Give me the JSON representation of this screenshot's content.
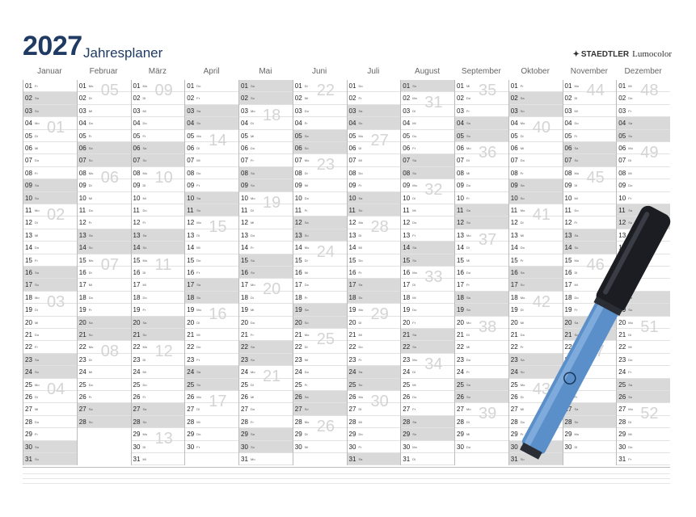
{
  "header": {
    "year": "2027",
    "title": "Jahresplaner",
    "brand": "STAEDTLER",
    "brand_product": "Lumocolor",
    "brand_mark": "✦"
  },
  "weekday_abbr": [
    "Mo",
    "Di",
    "Mi",
    "Do",
    "Fr",
    "Sa",
    "So"
  ],
  "months": [
    {
      "name": "Januar",
      "start_weekday": 4,
      "days": 31
    },
    {
      "name": "Februar",
      "start_weekday": 0,
      "days": 28
    },
    {
      "name": "März",
      "start_weekday": 0,
      "days": 31
    },
    {
      "name": "April",
      "start_weekday": 3,
      "days": 30
    },
    {
      "name": "Mai",
      "start_weekday": 5,
      "days": 31
    },
    {
      "name": "Juni",
      "start_weekday": 1,
      "days": 30
    },
    {
      "name": "Juli",
      "start_weekday": 3,
      "days": 31
    },
    {
      "name": "August",
      "start_weekday": 6,
      "days": 31
    },
    {
      "name": "September",
      "start_weekday": 2,
      "days": 30
    },
    {
      "name": "Oktober",
      "start_weekday": 4,
      "days": 31
    },
    {
      "name": "November",
      "start_weekday": 0,
      "days": 30
    },
    {
      "name": "Dezember",
      "start_weekday": 2,
      "days": 31
    }
  ],
  "week_numbers": [
    {
      "m": 0,
      "d": 4,
      "n": "01"
    },
    {
      "m": 0,
      "d": 11,
      "n": "02"
    },
    {
      "m": 0,
      "d": 18,
      "n": "03"
    },
    {
      "m": 0,
      "d": 25,
      "n": "04"
    },
    {
      "m": 1,
      "d": 1,
      "n": "05"
    },
    {
      "m": 1,
      "d": 8,
      "n": "06"
    },
    {
      "m": 1,
      "d": 15,
      "n": "07"
    },
    {
      "m": 1,
      "d": 22,
      "n": "08"
    },
    {
      "m": 2,
      "d": 1,
      "n": "09"
    },
    {
      "m": 2,
      "d": 8,
      "n": "10"
    },
    {
      "m": 2,
      "d": 15,
      "n": "11"
    },
    {
      "m": 2,
      "d": 22,
      "n": "12"
    },
    {
      "m": 2,
      "d": 29,
      "n": "13"
    },
    {
      "m": 3,
      "d": 5,
      "n": "14"
    },
    {
      "m": 3,
      "d": 12,
      "n": "15"
    },
    {
      "m": 3,
      "d": 19,
      "n": "16"
    },
    {
      "m": 3,
      "d": 26,
      "n": "17"
    },
    {
      "m": 4,
      "d": 3,
      "n": "18"
    },
    {
      "m": 4,
      "d": 10,
      "n": "19"
    },
    {
      "m": 4,
      "d": 17,
      "n": "20"
    },
    {
      "m": 4,
      "d": 24,
      "n": "21"
    },
    {
      "m": 5,
      "d": 1,
      "n": "22"
    },
    {
      "m": 5,
      "d": 7,
      "n": "23"
    },
    {
      "m": 5,
      "d": 14,
      "n": "24"
    },
    {
      "m": 5,
      "d": 21,
      "n": "25"
    },
    {
      "m": 5,
      "d": 28,
      "n": "26"
    },
    {
      "m": 6,
      "d": 5,
      "n": "27"
    },
    {
      "m": 6,
      "d": 12,
      "n": "28"
    },
    {
      "m": 6,
      "d": 19,
      "n": "29"
    },
    {
      "m": 6,
      "d": 26,
      "n": "30"
    },
    {
      "m": 7,
      "d": 2,
      "n": "31"
    },
    {
      "m": 7,
      "d": 9,
      "n": "32"
    },
    {
      "m": 7,
      "d": 16,
      "n": "33"
    },
    {
      "m": 7,
      "d": 23,
      "n": "34"
    },
    {
      "m": 8,
      "d": 1,
      "n": "35"
    },
    {
      "m": 8,
      "d": 6,
      "n": "36"
    },
    {
      "m": 8,
      "d": 13,
      "n": "37"
    },
    {
      "m": 8,
      "d": 20,
      "n": "38"
    },
    {
      "m": 8,
      "d": 27,
      "n": "39"
    },
    {
      "m": 9,
      "d": 4,
      "n": "40"
    },
    {
      "m": 9,
      "d": 11,
      "n": "41"
    },
    {
      "m": 9,
      "d": 18,
      "n": "42"
    },
    {
      "m": 9,
      "d": 25,
      "n": "43"
    },
    {
      "m": 10,
      "d": 1,
      "n": "44"
    },
    {
      "m": 10,
      "d": 8,
      "n": "45"
    },
    {
      "m": 10,
      "d": 15,
      "n": "46"
    },
    {
      "m": 10,
      "d": 22,
      "n": "47"
    },
    {
      "m": 11,
      "d": 1,
      "n": "48"
    },
    {
      "m": 11,
      "d": 6,
      "n": "49"
    },
    {
      "m": 11,
      "d": 13,
      "n": "50"
    },
    {
      "m": 11,
      "d": 20,
      "n": "51"
    },
    {
      "m": 11,
      "d": 27,
      "n": "52"
    }
  ],
  "colors": {
    "title": "#1f3a63",
    "weekend": "#d9d9d9",
    "grid": "#bcbcbc",
    "week_number": "#d4d4d4",
    "pen_cap": "#1b1d22",
    "pen_barrel": "#5b8fc9"
  },
  "pen": {
    "icon": "marker-pen-icon"
  }
}
